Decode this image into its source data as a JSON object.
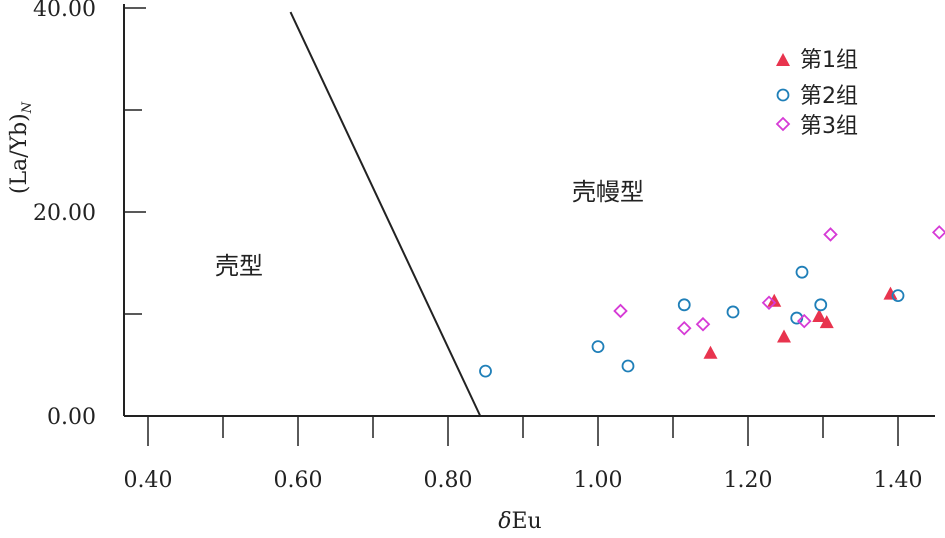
{
  "chart_data": {
    "type": "scatter",
    "xlabel": "δEu",
    "ylabel": "(La/Yb)N",
    "xlim": [
      0.4,
      1.45
    ],
    "ylim": [
      0,
      40
    ],
    "xticks": [
      "0.40",
      "0.60",
      "0.80",
      "1.00",
      "1.20",
      "1.40"
    ],
    "yticks": [
      "0.00",
      "20.00",
      "40.00"
    ],
    "grid": false,
    "legend": "top-right",
    "region_labels": {
      "left": "壳型",
      "right": "壳幔型"
    },
    "boundary_line": {
      "x": [
        0.59,
        0.843
      ],
      "y": [
        39.6,
        0
      ]
    },
    "series": [
      {
        "name": "第1组",
        "marker": "triangle",
        "color": "#e8344e",
        "x": [
          1.15,
          1.235,
          1.248,
          1.295,
          1.305,
          1.39
        ],
        "y": [
          6.2,
          11.3,
          7.8,
          9.8,
          9.2,
          12.0
        ]
      },
      {
        "name": "第2组",
        "marker": "circle",
        "color": "#1f7fb8",
        "x": [
          0.85,
          1.0,
          1.04,
          1.115,
          1.18,
          1.265,
          1.272,
          1.297,
          1.4
        ],
        "y": [
          4.4,
          6.8,
          4.9,
          10.9,
          10.2,
          9.6,
          14.1,
          10.9,
          11.8
        ]
      },
      {
        "name": "第3组",
        "marker": "diamond",
        "color": "#d63bd6",
        "x": [
          1.03,
          1.115,
          1.14,
          1.228,
          1.275,
          1.31,
          1.455
        ],
        "y": [
          10.3,
          8.6,
          9.0,
          11.1,
          9.3,
          17.8,
          18.0
        ]
      }
    ]
  }
}
